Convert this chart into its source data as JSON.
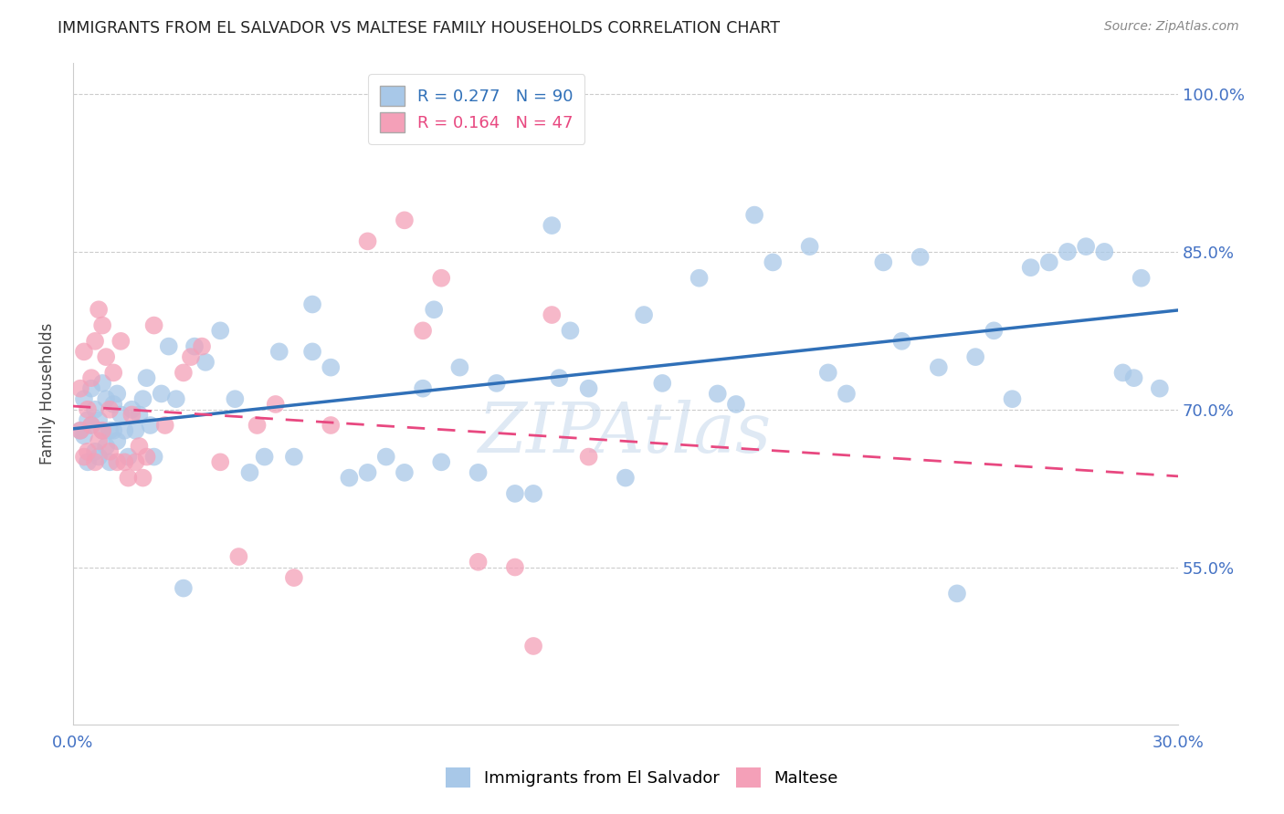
{
  "title": "IMMIGRANTS FROM EL SALVADOR VS MALTESE FAMILY HOUSEHOLDS CORRELATION CHART",
  "source": "Source: ZipAtlas.com",
  "ylabel": "Family Households",
  "xmin": 0.0,
  "xmax": 30.0,
  "ymin": 40.0,
  "ymax": 103.0,
  "yticks": [
    55.0,
    70.0,
    85.0,
    100.0
  ],
  "ytick_labels": [
    "55.0%",
    "70.0%",
    "85.0%",
    "100.0%"
  ],
  "legend_r1": "R = 0.277",
  "legend_n1": "N = 90",
  "legend_r2": "R = 0.164",
  "legend_n2": "N = 47",
  "color_blue": "#a8c8e8",
  "color_pink": "#f4a0b8",
  "color_blue_line": "#3070b8",
  "color_pink_line": "#e84880",
  "color_axis_labels": "#4472C4",
  "watermark": "ZIPAtlas",
  "blue_x": [
    0.2,
    0.3,
    0.3,
    0.4,
    0.4,
    0.5,
    0.5,
    0.6,
    0.6,
    0.7,
    0.7,
    0.8,
    0.8,
    0.9,
    0.9,
    1.0,
    1.0,
    1.1,
    1.1,
    1.2,
    1.2,
    1.3,
    1.4,
    1.5,
    1.6,
    1.7,
    1.8,
    1.9,
    2.0,
    2.1,
    2.2,
    2.4,
    2.6,
    2.8,
    3.0,
    3.3,
    3.6,
    4.0,
    4.4,
    4.8,
    5.2,
    5.6,
    6.0,
    6.5,
    7.0,
    7.5,
    8.0,
    8.5,
    9.0,
    9.5,
    10.0,
    10.5,
    11.0,
    11.5,
    12.0,
    12.5,
    13.0,
    13.5,
    14.0,
    15.0,
    15.5,
    16.0,
    17.0,
    17.5,
    18.0,
    19.0,
    20.0,
    20.5,
    21.0,
    22.0,
    22.5,
    23.0,
    24.0,
    24.5,
    25.0,
    25.5,
    26.0,
    26.5,
    27.0,
    27.5,
    28.0,
    28.5,
    29.0,
    29.5,
    6.5,
    9.8,
    13.2,
    18.5,
    23.5,
    28.8
  ],
  "blue_y": [
    68.0,
    67.5,
    71.0,
    69.0,
    65.0,
    68.5,
    72.0,
    66.0,
    70.0,
    65.5,
    69.0,
    68.0,
    72.5,
    66.5,
    71.0,
    68.0,
    65.0,
    70.5,
    68.0,
    67.0,
    71.5,
    69.5,
    68.0,
    65.5,
    70.0,
    68.0,
    69.5,
    71.0,
    73.0,
    68.5,
    65.5,
    71.5,
    76.0,
    71.0,
    53.0,
    76.0,
    74.5,
    77.5,
    71.0,
    64.0,
    65.5,
    75.5,
    65.5,
    75.5,
    74.0,
    63.5,
    64.0,
    65.5,
    64.0,
    72.0,
    65.0,
    74.0,
    64.0,
    72.5,
    62.0,
    62.0,
    87.5,
    77.5,
    72.0,
    63.5,
    79.0,
    72.5,
    82.5,
    71.5,
    70.5,
    84.0,
    85.5,
    73.5,
    71.5,
    84.0,
    76.5,
    84.5,
    52.5,
    75.0,
    77.5,
    71.0,
    83.5,
    84.0,
    85.0,
    85.5,
    85.0,
    73.5,
    82.5,
    72.0,
    80.0,
    79.5,
    73.0,
    88.5,
    74.0,
    73.0
  ],
  "pink_x": [
    0.2,
    0.2,
    0.3,
    0.3,
    0.4,
    0.4,
    0.5,
    0.5,
    0.6,
    0.6,
    0.7,
    0.7,
    0.8,
    0.8,
    0.9,
    1.0,
    1.0,
    1.1,
    1.2,
    1.3,
    1.4,
    1.5,
    1.6,
    1.7,
    1.8,
    2.0,
    2.2,
    2.5,
    3.0,
    3.5,
    4.0,
    4.5,
    5.0,
    5.5,
    6.0,
    7.0,
    8.0,
    9.0,
    9.5,
    10.0,
    11.0,
    12.0,
    12.5,
    13.0,
    14.0,
    3.2,
    1.9
  ],
  "pink_y": [
    68.0,
    72.0,
    65.5,
    75.5,
    66.0,
    70.0,
    68.5,
    73.0,
    65.0,
    76.5,
    67.0,
    79.5,
    68.0,
    78.0,
    75.0,
    66.0,
    70.0,
    73.5,
    65.0,
    76.5,
    65.0,
    63.5,
    69.5,
    65.0,
    66.5,
    65.5,
    78.0,
    68.5,
    73.5,
    76.0,
    65.0,
    56.0,
    68.5,
    70.5,
    54.0,
    68.5,
    86.0,
    88.0,
    77.5,
    82.5,
    55.5,
    55.0,
    47.5,
    79.0,
    65.5,
    75.0,
    63.5
  ]
}
